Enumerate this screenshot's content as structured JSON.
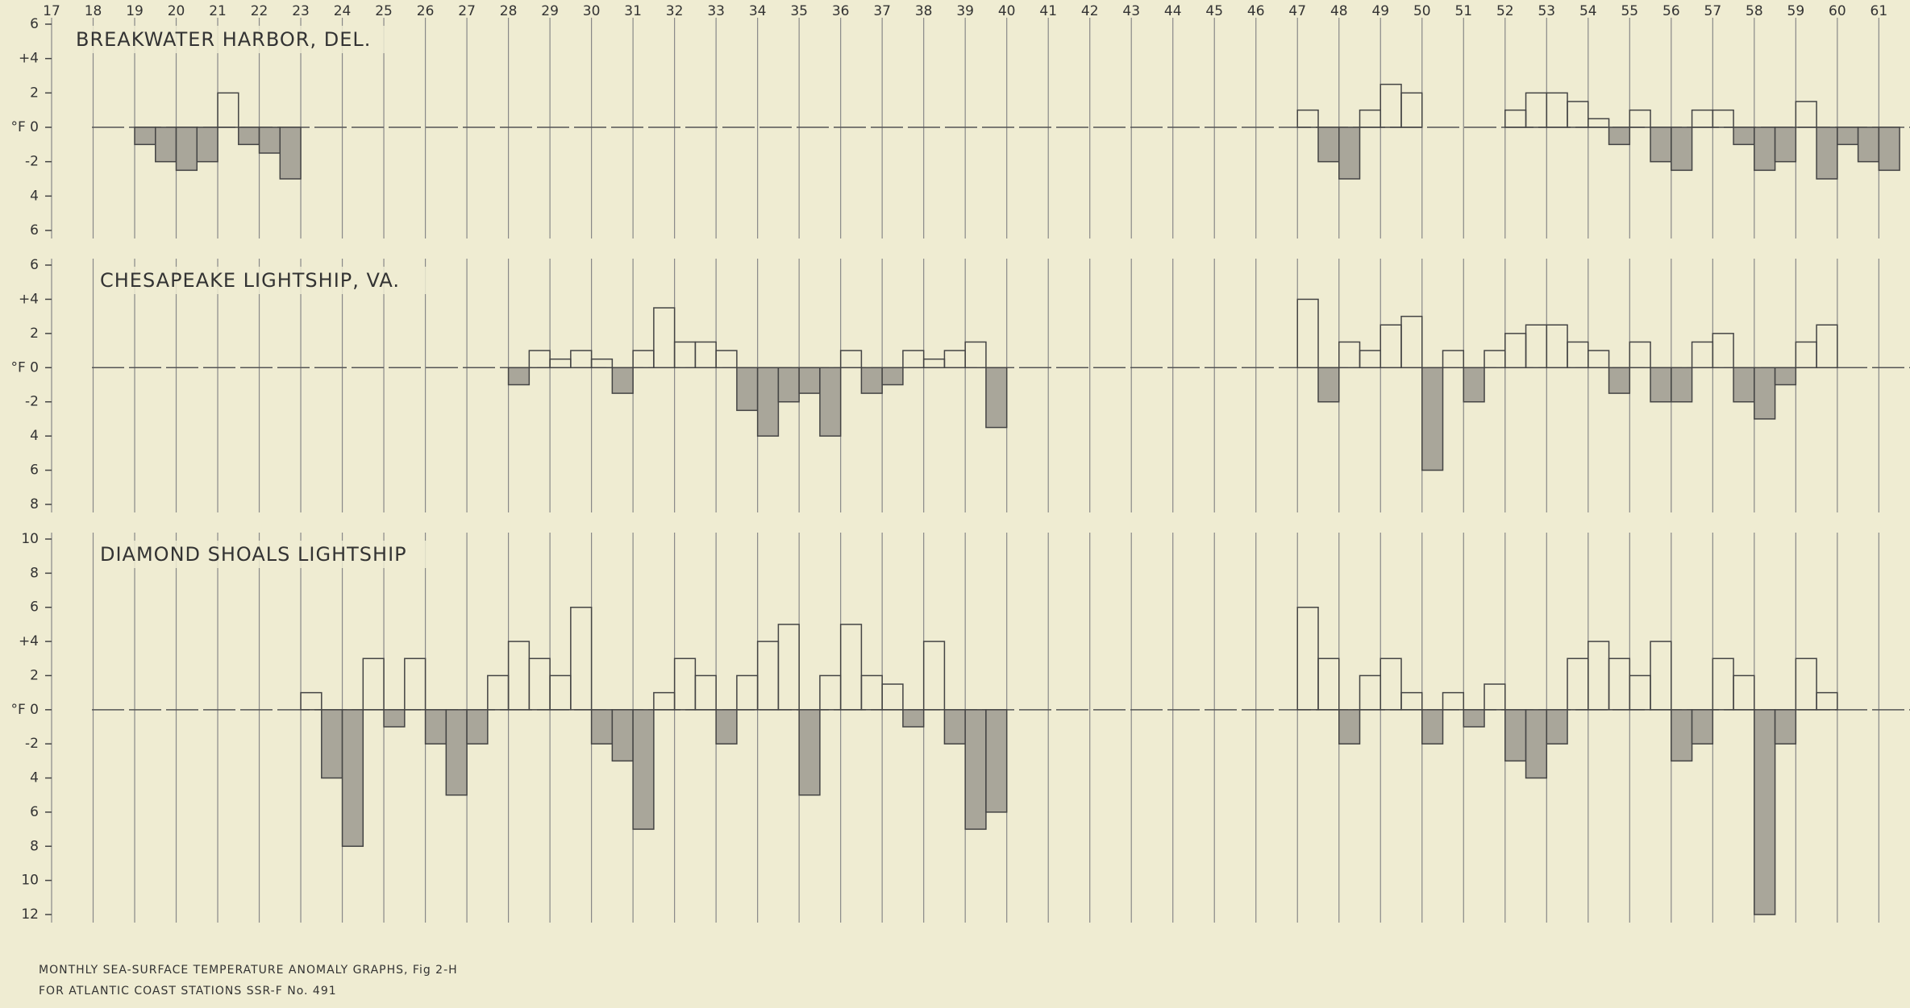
{
  "chart_data": [
    {
      "type": "bar",
      "title": "BREAKWATER HARBOR, DEL.",
      "xlim": [
        17,
        61.75
      ],
      "xticks": [
        17,
        18,
        19,
        20,
        21,
        22,
        23,
        24,
        25,
        26,
        27,
        28,
        29,
        30,
        31,
        32,
        33,
        34,
        35,
        36,
        37,
        38,
        39,
        40,
        41,
        42,
        43,
        44,
        45,
        46,
        47,
        48,
        49,
        50,
        51,
        52,
        53,
        54,
        55,
        56,
        57,
        58,
        59,
        60,
        61
      ],
      "ylim": [
        -6,
        6
      ],
      "yticks": [
        6,
        {
          "value": 4,
          "label": "+4"
        },
        2,
        {
          "value": 0,
          "label": "°F 0"
        },
        -2,
        {
          "value": -4,
          "label": "4"
        },
        {
          "value": -6,
          "label": "6"
        }
      ],
      "x": [
        19,
        19.5,
        20,
        20.5,
        21,
        21.5,
        22,
        22.5,
        47,
        47.5,
        48,
        48.5,
        49,
        49.5,
        52,
        52.5,
        53,
        53.5,
        54,
        54.5,
        55,
        55.5,
        56,
        56.5,
        57,
        57.5,
        58,
        58.5,
        59,
        59.5,
        60,
        60.5,
        61
      ],
      "values": [
        -1,
        -2,
        -2.5,
        -2,
        2,
        -1,
        -1.5,
        -3,
        1,
        -2,
        -3,
        1,
        2.5,
        2,
        1,
        2,
        2,
        1.5,
        0.5,
        -1,
        1,
        -2,
        -2.5,
        1,
        1,
        -1,
        -2.5,
        -2,
        1.5,
        -3,
        -1,
        -2,
        -2.5
      ]
    },
    {
      "type": "bar",
      "title": "CHESAPEAKE LIGHTSHIP, VA.",
      "ylim": [
        -8,
        6
      ],
      "yticks": [
        6,
        {
          "value": 4,
          "label": "+4"
        },
        2,
        {
          "value": 0,
          "label": "°F 0"
        },
        -2,
        {
          "value": -4,
          "label": "4"
        },
        {
          "value": -6,
          "label": "6"
        },
        {
          "value": -8,
          "label": "8"
        }
      ],
      "x": [
        28,
        28.5,
        29,
        29.5,
        30,
        30.5,
        31,
        31.5,
        32,
        32.5,
        33,
        33.5,
        34,
        34.5,
        35,
        35.5,
        36,
        36.5,
        37,
        37.5,
        38,
        38.5,
        39,
        39.5,
        47,
        47.5,
        48,
        48.5,
        49,
        49.5,
        50,
        50.5,
        51,
        51.5,
        52,
        52.5,
        53,
        53.5,
        54,
        54.5,
        55,
        55.5,
        56,
        56.5,
        57,
        57.5,
        58,
        58.5,
        59,
        59.5
      ],
      "values": [
        -1,
        1,
        0.5,
        1,
        0.5,
        -1.5,
        1,
        3.5,
        1.5,
        1.5,
        1,
        -2.5,
        -4,
        -2,
        -1.5,
        -4,
        1,
        -1.5,
        -1,
        1,
        0.5,
        1,
        1.5,
        -3.5,
        4,
        -2,
        1.5,
        1,
        2.5,
        3,
        -6,
        1,
        -2,
        1,
        2,
        2.5,
        2.5,
        1.5,
        1,
        -1.5,
        1.5,
        -2,
        -2,
        1.5,
        2,
        -2,
        -3,
        -1,
        1.5,
        2.5
      ]
    },
    {
      "type": "bar",
      "title": "DIAMOND SHOALS LIGHTSHIP",
      "ylim": [
        -12,
        10
      ],
      "yticks": [
        10,
        8,
        6,
        {
          "value": 4,
          "label": "+4"
        },
        2,
        {
          "value": 0,
          "label": "°F 0"
        },
        -2,
        {
          "value": -4,
          "label": "4"
        },
        {
          "value": -6,
          "label": "6"
        },
        {
          "value": -8,
          "label": "8"
        },
        {
          "value": -10,
          "label": "10"
        },
        {
          "value": -12,
          "label": "12"
        }
      ],
      "x": [
        23,
        23.5,
        24,
        24.5,
        25,
        25.5,
        26,
        26.5,
        27,
        27.5,
        28,
        28.5,
        29,
        29.5,
        30,
        30.5,
        31,
        31.5,
        32,
        32.5,
        33,
        33.5,
        34,
        34.5,
        35,
        35.5,
        36,
        36.5,
        37,
        37.5,
        38,
        38.5,
        39,
        39.5,
        47,
        47.5,
        48,
        48.5,
        49,
        49.5,
        50,
        50.5,
        51,
        51.5,
        52,
        52.5,
        53,
        53.5,
        54,
        54.5,
        55,
        55.5,
        56,
        56.5,
        57,
        57.5,
        58,
        58.5,
        59,
        59.5
      ],
      "values": [
        1,
        -4,
        -8,
        3,
        -1,
        3,
        -2,
        -5,
        -2,
        2,
        4,
        3,
        2,
        6,
        -2,
        -3,
        -7,
        1,
        3,
        2,
        -2,
        2,
        4,
        5,
        -5,
        2,
        5,
        2,
        1.5,
        -1,
        4,
        -2,
        -7,
        -6,
        6,
        3,
        -2,
        2,
        3,
        1,
        -2,
        1,
        -1,
        1.5,
        -3,
        -4,
        -2,
        3,
        4,
        3,
        2,
        4,
        -3,
        -2,
        3,
        2,
        -12,
        -2,
        3,
        1
      ]
    }
  ],
  "caption": [
    "MONTHLY SEA-SURFACE TEMPERATURE ANOMALY GRAPHS, Fig 2-H",
    "FOR ATLANTIC COAST STATIONS SSR-F No. 491"
  ]
}
